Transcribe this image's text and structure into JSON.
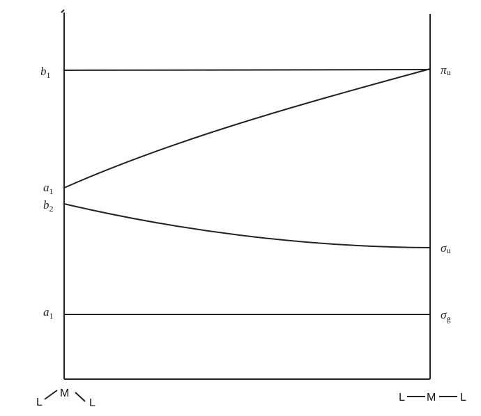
{
  "diagram": {
    "left_labels": [
      {
        "symbol": "b",
        "sub": "1"
      },
      {
        "symbol": "a",
        "sub": "1"
      },
      {
        "symbol": "b",
        "sub": "2"
      },
      {
        "symbol": "a",
        "sub": "1"
      }
    ],
    "right_labels": [
      {
        "symbol": "π",
        "sub": "u"
      },
      {
        "symbol": "σ",
        "sub": "u"
      },
      {
        "symbol": "σ",
        "sub": "g"
      }
    ],
    "bent_geometry": [
      "L",
      "M",
      "L"
    ],
    "linear_geometry": [
      "L",
      "M",
      "L"
    ]
  }
}
